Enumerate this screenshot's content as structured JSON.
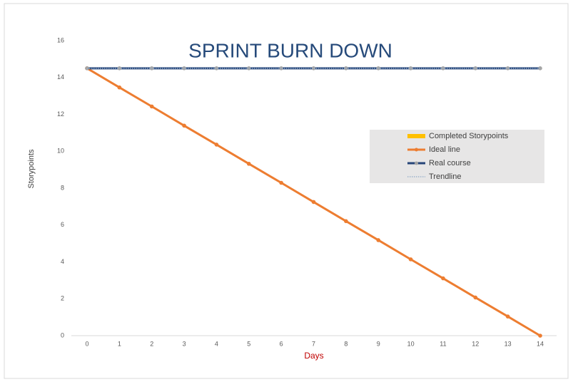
{
  "chart_data": {
    "type": "line",
    "title": "SPRINT BURN DOWN",
    "x_label": "Days",
    "y_label": "Storypoints",
    "categories": [
      "0",
      "1",
      "2",
      "3",
      "4",
      "5",
      "6",
      "7",
      "8",
      "9",
      "10",
      "11",
      "12",
      "13",
      "14"
    ],
    "ylim": [
      0,
      16
    ],
    "yticks": [
      0,
      2,
      4,
      6,
      8,
      10,
      12,
      14,
      16
    ],
    "legend": "right",
    "series": [
      {
        "name": "Completed Storypoints",
        "color": "#ffc000",
        "style": "bar"
      },
      {
        "name": "Ideal line",
        "color": "#ed7d31",
        "marker_color": "#ed7d31",
        "style": "solid",
        "values": [
          14.5,
          13.46,
          12.43,
          11.39,
          10.36,
          9.32,
          8.29,
          7.25,
          6.21,
          5.18,
          4.14,
          3.11,
          2.07,
          1.04,
          0
        ]
      },
      {
        "name": "Real course",
        "color": "#264478",
        "marker_color": "#a5a5a5",
        "style": "solid",
        "values": [
          14.5,
          14.5,
          14.5,
          14.5,
          14.5,
          14.5,
          14.5,
          14.5,
          14.5,
          14.5,
          14.5,
          14.5,
          14.5,
          14.5,
          14.5
        ]
      },
      {
        "name": "Trendline",
        "color": "#8ea9c8",
        "style": "dotted",
        "values": [
          14.5,
          14.5,
          14.5,
          14.5,
          14.5,
          14.5,
          14.5,
          14.5,
          14.5,
          14.5,
          14.5,
          14.5,
          14.5,
          14.5,
          14.5
        ]
      }
    ]
  }
}
